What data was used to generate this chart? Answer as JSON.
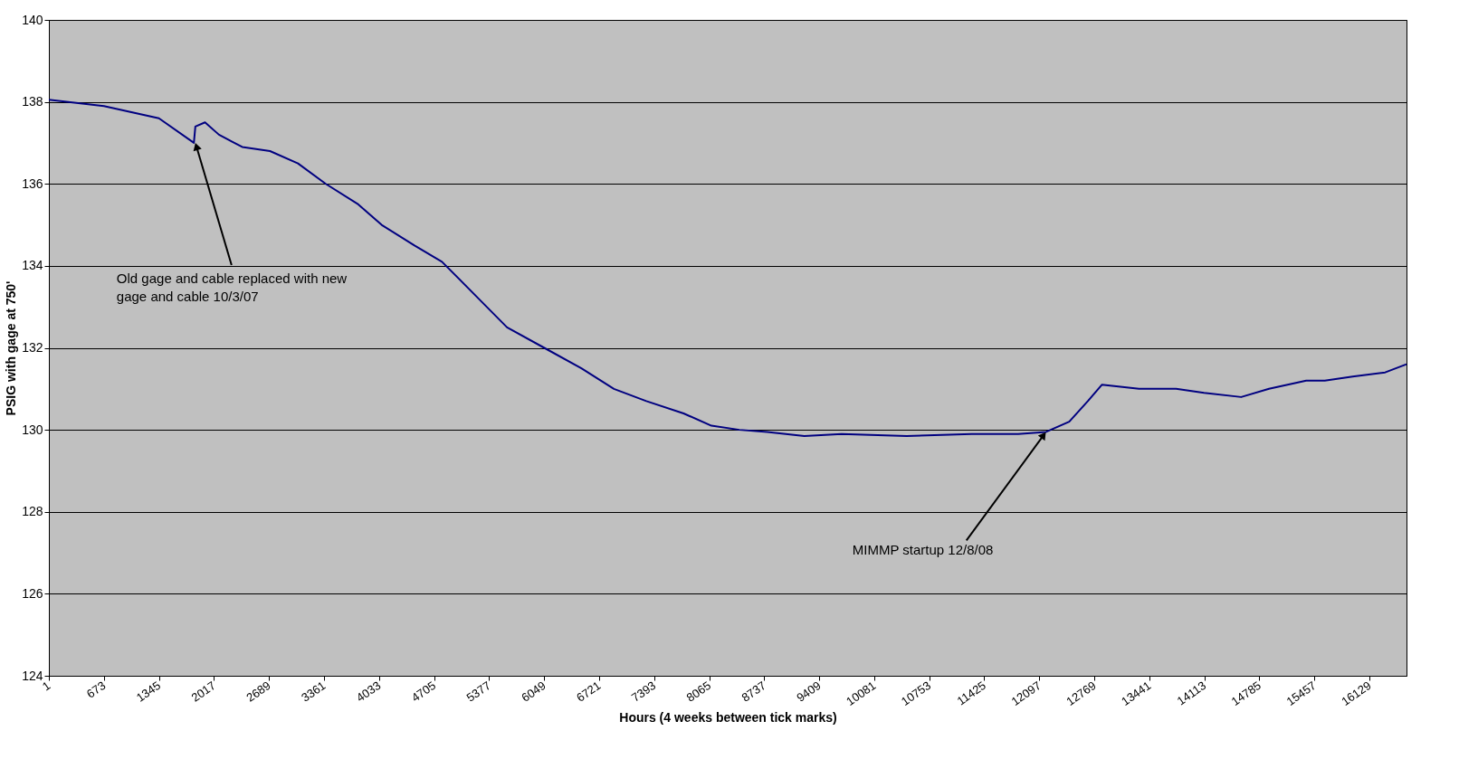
{
  "chart_data": {
    "type": "line",
    "xlabel": "Hours (4 weeks between tick marks)",
    "ylabel": "PSIG with gage at 750'",
    "x": [
      1,
      673,
      1345,
      1772,
      1790,
      1908,
      2078,
      2362,
      2702,
      3043,
      3383,
      3780,
      4065,
      4462,
      4802,
      5200,
      5597,
      6051,
      6505,
      6902,
      7298,
      7753,
      8093,
      8434,
      8774,
      9228,
      9683,
      10477,
      11272,
      11839,
      12180,
      12463,
      12690,
      12861,
      13315,
      13768,
      14109,
      14563,
      14903,
      15357,
      15584,
      15924,
      16321,
      16582
    ],
    "series": [
      {
        "color": "#000080",
        "values": [
          138.05,
          137.9,
          137.6,
          137.0,
          137.4,
          137.5,
          137.2,
          136.9,
          136.8,
          136.5,
          136.0,
          135.5,
          135.0,
          134.5,
          134.1,
          133.3,
          132.5,
          132.0,
          131.5,
          131.0,
          130.7,
          130.4,
          130.1,
          130.0,
          129.95,
          129.85,
          129.9,
          129.85,
          129.9,
          129.9,
          129.95,
          130.2,
          130.7,
          131.1,
          131.0,
          131.0,
          130.9,
          130.8,
          131.0,
          131.2,
          131.2,
          131.3,
          131.4,
          131.6
        ]
      }
    ],
    "xlim": [
      1,
      16582
    ],
    "xticks": [
      1,
      673,
      1345,
      2017,
      2689,
      3361,
      4033,
      4705,
      5377,
      6049,
      6721,
      7393,
      8065,
      8737,
      9409,
      10081,
      10753,
      11425,
      12097,
      12769,
      13441,
      14113,
      14785,
      15457,
      16129
    ],
    "ylim": [
      124,
      140
    ],
    "yticks": [
      124,
      126,
      128,
      130,
      132,
      134,
      136,
      138,
      140
    ],
    "grid": "y",
    "annotations": [
      {
        "text": "Old gage and cable replaced with new\ngage and cable  10/3/07",
        "x": 1790,
        "y": 137.0
      },
      {
        "text": "MIMMP startup 12/8/08",
        "x": 12180,
        "y": 129.95
      }
    ]
  }
}
